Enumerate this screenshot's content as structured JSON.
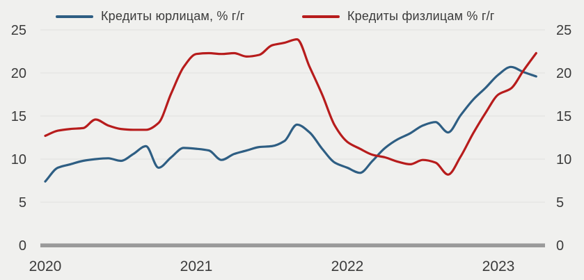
{
  "legend": [
    {
      "label": "Кредиты юрлицам, % г/г",
      "series_key": "corporate"
    },
    {
      "label": "Кредиты физлицам % г/г",
      "series_key": "retail"
    }
  ],
  "colors": {
    "corporate_line": "#2e5e83",
    "retail_line": "#b71c1c",
    "background": "#f0f0ee",
    "gridline": "#e3e3e1",
    "zero_axis": "#9a9a9a",
    "text": "#3b3b3b"
  },
  "chart_data": {
    "type": "line",
    "title": "",
    "x_unit": "month",
    "x": [
      "2020-01",
      "2020-02",
      "2020-03",
      "2020-04",
      "2020-05",
      "2020-06",
      "2020-07",
      "2020-08",
      "2020-09",
      "2020-10",
      "2020-11",
      "2020-12",
      "2021-01",
      "2021-02",
      "2021-03",
      "2021-04",
      "2021-05",
      "2021-06",
      "2021-07",
      "2021-08",
      "2021-09",
      "2021-10",
      "2021-11",
      "2021-12",
      "2022-01",
      "2022-02",
      "2022-03",
      "2022-04",
      "2022-05",
      "2022-06",
      "2022-07",
      "2022-08",
      "2022-09",
      "2022-10",
      "2022-11",
      "2022-12",
      "2023-01",
      "2023-02",
      "2023-03",
      "2023-04"
    ],
    "x_tick_labels": [
      "2020",
      "2021",
      "2022",
      "2023"
    ],
    "y_ticks": [
      0,
      5,
      10,
      15,
      20,
      25
    ],
    "y_tick_labels": [
      "0",
      "5",
      "10",
      "15",
      "20",
      "25"
    ],
    "ylim": [
      0,
      25
    ],
    "y_axis_sides": "both",
    "grid": "horizontal",
    "legend_position": "top",
    "series": [
      {
        "name": "Кредиты юрлицам, % г/г",
        "color": "#2e5e83",
        "values": [
          7.4,
          9.0,
          9.4,
          9.8,
          10.0,
          10.1,
          9.8,
          10.6,
          11.5,
          9.0,
          10.2,
          11.3,
          11.2,
          11.0,
          9.9,
          10.6,
          11.0,
          11.4,
          11.5,
          12.1,
          14.0,
          13.1,
          11.2,
          9.6,
          9.0,
          8.4,
          9.8,
          11.3,
          12.3,
          13.0,
          13.9,
          14.3,
          13.1,
          15.1,
          16.9,
          18.3,
          19.8,
          20.7,
          20.1,
          19.6
        ]
      },
      {
        "name": "Кредиты физлицам % г/г",
        "color": "#b71c1c",
        "values": [
          12.7,
          13.3,
          13.5,
          13.6,
          14.6,
          13.9,
          13.5,
          13.4,
          13.4,
          14.2,
          17.6,
          20.7,
          22.2,
          22.3,
          22.2,
          22.3,
          21.9,
          22.1,
          23.2,
          23.5,
          23.9,
          20.7,
          17.5,
          13.9,
          12.0,
          11.2,
          10.5,
          10.2,
          9.7,
          9.4,
          9.9,
          9.6,
          8.2,
          10.3,
          13.0,
          15.4,
          17.5,
          18.2,
          20.3,
          22.3
        ]
      }
    ]
  }
}
